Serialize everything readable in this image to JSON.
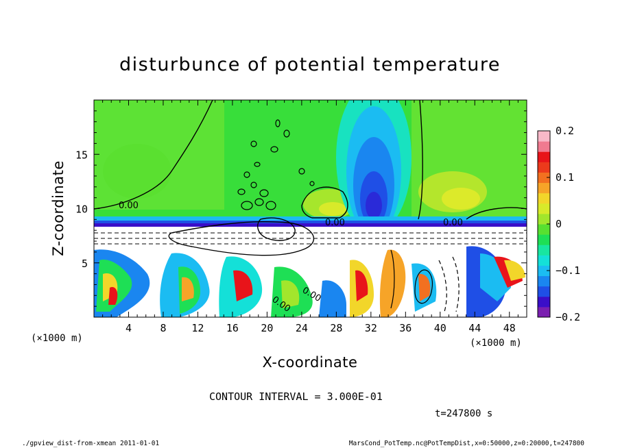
{
  "chart_data": {
    "type": "heatmap",
    "title": "disturbunce of potential temperature",
    "xlabel": "X-coordinate",
    "ylabel": "Z-coordinate",
    "x_unit": "(×1000 m)",
    "y_unit": "(×1000 m)",
    "xlim": [
      0,
      50
    ],
    "ylim": [
      0,
      20
    ],
    "x_ticks": [
      4,
      8,
      12,
      16,
      20,
      24,
      28,
      32,
      36,
      40,
      44,
      48
    ],
    "y_ticks": [
      5,
      10,
      15
    ],
    "colorbar": {
      "min": -0.2,
      "max": 0.2,
      "ticks": [
        0.2,
        0.1,
        0,
        -0.1,
        -0.2
      ],
      "tick_labels": [
        "0.2",
        "0.1",
        "0",
        "−0.1",
        "−0.2"
      ],
      "colors": [
        "#7a1fb0",
        "#3a0ec8",
        "#1f4fe6",
        "#1a86f0",
        "#1bbcf2",
        "#14e0d8",
        "#18e6a0",
        "#1edf55",
        "#58e030",
        "#a2e62c",
        "#d8ea2a",
        "#f2d62a",
        "#f6a428",
        "#f27020",
        "#ec3a1c",
        "#e8141a",
        "#f07a90",
        "#f8b8c8"
      ]
    },
    "contour_labels": [
      "0.00",
      "0.00",
      "0.00",
      "0.00",
      "0.00"
    ],
    "contour_interval_text": "CONTOUR INTERVAL = 3.000E-01",
    "time_text": "t=247800 s"
  },
  "footer": {
    "left": "./gpview_dist-from-xmean  2011-01-01",
    "right": "MarsCond_PotTemp.nc@PotTempDist,x=0:50000,z=0:20000,t=247800"
  }
}
